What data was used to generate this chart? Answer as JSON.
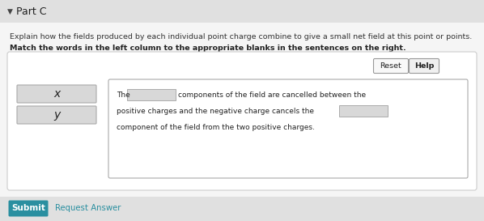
{
  "bg_color": "#f0f0f0",
  "panel_bg": "#ffffff",
  "title": "Part C",
  "instruction1": "Explain how the fields produced by each individual point charge combine to give a small net field at this point or points.",
  "instruction2": "Match the words in the left column to the appropriate blanks in the sentences on the right.",
  "left_labels": [
    "x",
    "y"
  ],
  "submit_text": "Submit",
  "submit_bg": "#2a8fa0",
  "submit_fg": "#ffffff",
  "request_text": "Request Answer",
  "reset_text": "Reset",
  "help_text": "Help",
  "arrow_symbol": "▼",
  "panel_border": "#cccccc",
  "box_border": "#aaaaaa",
  "box_fill": "#d8d8d8",
  "blank_fill": "#d8d8d8",
  "blank_border": "#aaaaaa",
  "text_color": "#222222",
  "link_color": "#2a8fa0",
  "font_size_title": 9,
  "font_size_instr": 6.8,
  "font_size_instr2": 6.8,
  "font_size_label": 9,
  "font_size_sentence": 6.5,
  "font_size_btn": 6.8,
  "font_size_submit": 7.5
}
